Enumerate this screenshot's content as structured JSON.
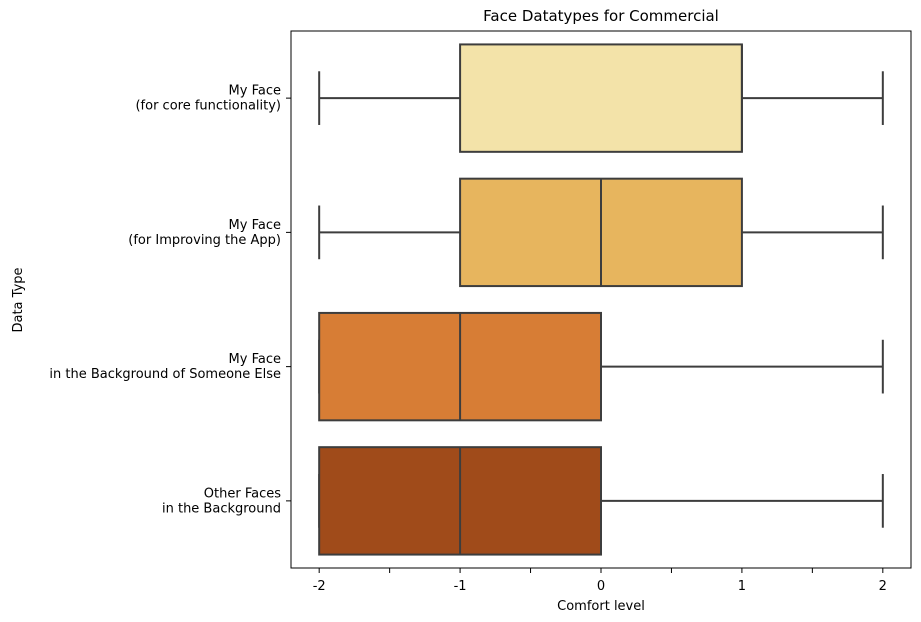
{
  "chart_data": {
    "type": "boxplot",
    "title": "Face Datatypes for Commercial",
    "xlabel": "Comfort level",
    "ylabel": "Data Type",
    "xlim": [
      -2.2,
      2.2
    ],
    "x_ticks": [
      -2,
      -1.5,
      -1,
      -0.5,
      0,
      0.5,
      1,
      1.5,
      2
    ],
    "x_tick_labels": [
      "-2",
      "",
      "-1",
      "",
      "0",
      "",
      "1",
      "",
      "2"
    ],
    "grid": false,
    "orientation": "horizontal",
    "categories": [
      {
        "label_lines": [
          "My Face",
          "(for core functionality)"
        ],
        "color": "#f3e3a9",
        "whisker_low": -2,
        "q1": -1,
        "median": 1,
        "q3": 1,
        "whisker_high": 2
      },
      {
        "label_lines": [
          "My Face",
          "(for Improving the App)"
        ],
        "color": "#e7b55e",
        "whisker_low": -2,
        "q1": -1,
        "median": 0,
        "q3": 1,
        "whisker_high": 2
      },
      {
        "label_lines": [
          "My Face",
          "in the Background of Someone Else"
        ],
        "color": "#d77d35",
        "whisker_low": -2,
        "q1": -2,
        "median": -1,
        "q3": 0,
        "whisker_high": 2
      },
      {
        "label_lines": [
          "Other Faces",
          "in the Background"
        ],
        "color": "#a04b1a",
        "whisker_low": -2,
        "q1": -2,
        "median": -1,
        "q3": 0,
        "whisker_high": 2
      }
    ],
    "line_color": "#3d3d3d"
  }
}
